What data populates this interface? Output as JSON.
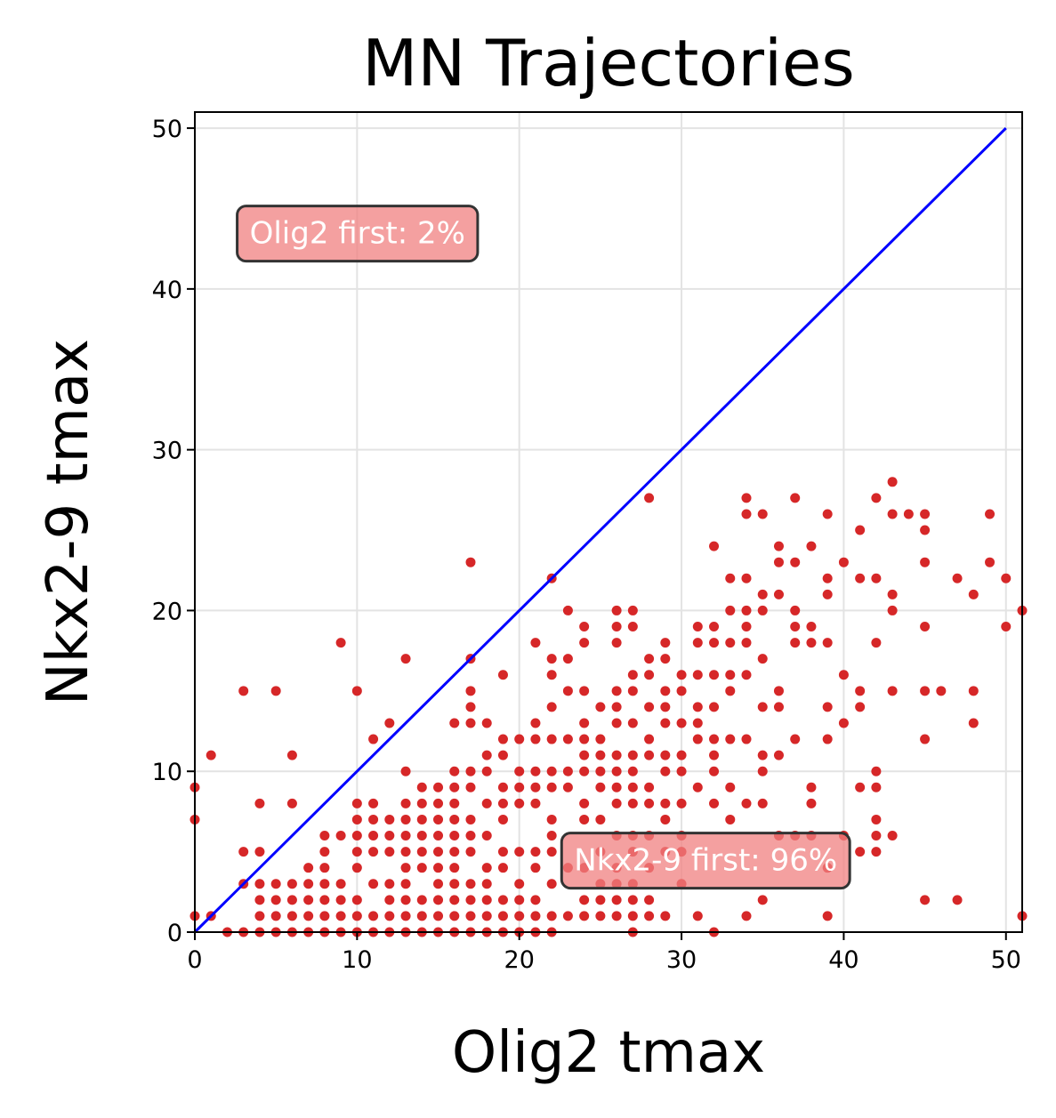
{
  "chart_data": {
    "type": "scatter",
    "title": "MN Trajectories",
    "xlabel": "Olig2 tmax",
    "ylabel": "Nkx2-9 tmax",
    "xlim": [
      0,
      51
    ],
    "ylim": [
      0,
      51
    ],
    "xticks": [
      0,
      10,
      20,
      30,
      40,
      50
    ],
    "yticks": [
      0,
      10,
      20,
      30,
      40,
      50
    ],
    "grid": true,
    "point_color": "#d62728",
    "diagonal": {
      "x": [
        0,
        50
      ],
      "y": [
        0,
        50
      ],
      "color": "#0000ff"
    },
    "annotations": [
      {
        "text": "Olig2 first: 2%",
        "x": 2.5,
        "y": 43.5,
        "color": "#f08080"
      },
      {
        "text": "Nkx2-9 first: 96%",
        "x": 22.5,
        "y": 4.5,
        "color": "#f08080"
      }
    ],
    "points": [
      [
        0,
        9
      ],
      [
        0,
        7
      ],
      [
        0,
        1
      ],
      [
        1,
        1
      ],
      [
        1,
        11
      ],
      [
        2,
        0
      ],
      [
        3,
        15
      ],
      [
        3,
        5
      ],
      [
        3,
        3
      ],
      [
        3,
        0
      ],
      [
        4,
        8
      ],
      [
        4,
        5
      ],
      [
        4,
        3
      ],
      [
        4,
        2
      ],
      [
        4,
        1
      ],
      [
        4,
        0
      ],
      [
        5,
        15
      ],
      [
        5,
        3
      ],
      [
        5,
        2
      ],
      [
        5,
        1
      ],
      [
        5,
        0
      ],
      [
        6,
        11
      ],
      [
        6,
        8
      ],
      [
        6,
        3
      ],
      [
        6,
        2
      ],
      [
        6,
        1
      ],
      [
        6,
        0
      ],
      [
        7,
        4
      ],
      [
        7,
        3
      ],
      [
        7,
        2
      ],
      [
        7,
        1
      ],
      [
        7,
        0
      ],
      [
        8,
        6
      ],
      [
        8,
        5
      ],
      [
        8,
        4
      ],
      [
        8,
        3
      ],
      [
        8,
        2
      ],
      [
        8,
        1
      ],
      [
        8,
        0
      ],
      [
        9,
        18
      ],
      [
        9,
        6
      ],
      [
        9,
        3
      ],
      [
        9,
        2
      ],
      [
        9,
        1
      ],
      [
        9,
        0
      ],
      [
        10,
        15
      ],
      [
        10,
        8
      ],
      [
        10,
        7
      ],
      [
        10,
        6
      ],
      [
        10,
        5
      ],
      [
        10,
        4
      ],
      [
        10,
        2
      ],
      [
        10,
        1
      ],
      [
        10,
        0
      ],
      [
        11,
        12
      ],
      [
        11,
        8
      ],
      [
        11,
        7
      ],
      [
        11,
        6
      ],
      [
        11,
        5
      ],
      [
        11,
        3
      ],
      [
        11,
        1
      ],
      [
        11,
        0
      ],
      [
        12,
        13
      ],
      [
        12,
        7
      ],
      [
        12,
        6
      ],
      [
        12,
        5
      ],
      [
        12,
        3
      ],
      [
        12,
        2
      ],
      [
        12,
        1
      ],
      [
        12,
        0
      ],
      [
        13,
        17
      ],
      [
        13,
        10
      ],
      [
        13,
        8
      ],
      [
        13,
        7
      ],
      [
        13,
        6
      ],
      [
        13,
        5
      ],
      [
        13,
        4
      ],
      [
        13,
        3
      ],
      [
        13,
        2
      ],
      [
        13,
        1
      ],
      [
        13,
        0
      ],
      [
        14,
        9
      ],
      [
        14,
        8
      ],
      [
        14,
        7
      ],
      [
        14,
        6
      ],
      [
        14,
        5
      ],
      [
        14,
        4
      ],
      [
        14,
        2
      ],
      [
        14,
        1
      ],
      [
        14,
        0
      ],
      [
        15,
        9
      ],
      [
        15,
        8
      ],
      [
        15,
        7
      ],
      [
        15,
        6
      ],
      [
        15,
        5
      ],
      [
        15,
        4
      ],
      [
        15,
        3
      ],
      [
        15,
        2
      ],
      [
        15,
        1
      ],
      [
        15,
        0
      ],
      [
        16,
        13
      ],
      [
        16,
        10
      ],
      [
        16,
        9
      ],
      [
        16,
        8
      ],
      [
        16,
        7
      ],
      [
        16,
        6
      ],
      [
        16,
        5
      ],
      [
        16,
        4
      ],
      [
        16,
        3
      ],
      [
        16,
        2
      ],
      [
        16,
        1
      ],
      [
        16,
        0
      ],
      [
        17,
        23
      ],
      [
        17,
        17
      ],
      [
        17,
        15
      ],
      [
        17,
        14
      ],
      [
        17,
        13
      ],
      [
        17,
        10
      ],
      [
        17,
        9
      ],
      [
        17,
        7
      ],
      [
        17,
        6
      ],
      [
        17,
        5
      ],
      [
        17,
        3
      ],
      [
        17,
        2
      ],
      [
        17,
        1
      ],
      [
        17,
        0
      ],
      [
        18,
        13
      ],
      [
        18,
        11
      ],
      [
        18,
        10
      ],
      [
        18,
        8
      ],
      [
        18,
        6
      ],
      [
        18,
        4
      ],
      [
        18,
        3
      ],
      [
        18,
        2
      ],
      [
        18,
        1
      ],
      [
        18,
        0
      ],
      [
        19,
        16
      ],
      [
        19,
        12
      ],
      [
        19,
        11
      ],
      [
        19,
        9
      ],
      [
        19,
        8
      ],
      [
        19,
        7
      ],
      [
        19,
        5
      ],
      [
        19,
        4
      ],
      [
        19,
        2
      ],
      [
        19,
        1
      ],
      [
        19,
        0
      ],
      [
        20,
        12
      ],
      [
        20,
        10
      ],
      [
        20,
        9
      ],
      [
        20,
        8
      ],
      [
        20,
        5
      ],
      [
        20,
        3
      ],
      [
        20,
        2
      ],
      [
        20,
        1
      ],
      [
        20,
        0
      ],
      [
        21,
        18
      ],
      [
        21,
        13
      ],
      [
        21,
        12
      ],
      [
        21,
        10
      ],
      [
        21,
        9
      ],
      [
        21,
        8
      ],
      [
        21,
        5
      ],
      [
        21,
        4
      ],
      [
        21,
        2
      ],
      [
        21,
        1
      ],
      [
        21,
        0
      ],
      [
        22,
        22
      ],
      [
        22,
        17
      ],
      [
        22,
        16
      ],
      [
        22,
        14
      ],
      [
        22,
        12
      ],
      [
        22,
        10
      ],
      [
        22,
        9
      ],
      [
        22,
        7
      ],
      [
        22,
        6
      ],
      [
        22,
        5
      ],
      [
        22,
        3
      ],
      [
        22,
        1
      ],
      [
        22,
        0
      ],
      [
        23,
        20
      ],
      [
        23,
        17
      ],
      [
        23,
        15
      ],
      [
        23,
        12
      ],
      [
        23,
        10
      ],
      [
        23,
        9
      ],
      [
        23,
        4
      ],
      [
        23,
        1
      ],
      [
        24,
        19
      ],
      [
        24,
        18
      ],
      [
        24,
        15
      ],
      [
        24,
        13
      ],
      [
        24,
        12
      ],
      [
        24,
        11
      ],
      [
        24,
        10
      ],
      [
        24,
        8
      ],
      [
        24,
        7
      ],
      [
        24,
        4
      ],
      [
        24,
        2
      ],
      [
        24,
        1
      ],
      [
        25,
        14
      ],
      [
        25,
        12
      ],
      [
        25,
        11
      ],
      [
        25,
        10
      ],
      [
        25,
        9
      ],
      [
        25,
        7
      ],
      [
        25,
        5
      ],
      [
        25,
        3
      ],
      [
        25,
        2
      ],
      [
        25,
        1
      ],
      [
        26,
        20
      ],
      [
        26,
        19
      ],
      [
        26,
        18
      ],
      [
        26,
        15
      ],
      [
        26,
        14
      ],
      [
        26,
        13
      ],
      [
        26,
        11
      ],
      [
        26,
        10
      ],
      [
        26,
        9
      ],
      [
        26,
        8
      ],
      [
        26,
        6
      ],
      [
        26,
        4
      ],
      [
        26,
        3
      ],
      [
        26,
        2
      ],
      [
        26,
        1
      ],
      [
        27,
        20
      ],
      [
        27,
        19
      ],
      [
        27,
        16
      ],
      [
        27,
        15
      ],
      [
        27,
        13
      ],
      [
        27,
        11
      ],
      [
        27,
        10
      ],
      [
        27,
        9
      ],
      [
        27,
        8
      ],
      [
        27,
        6
      ],
      [
        27,
        5
      ],
      [
        27,
        3
      ],
      [
        27,
        2
      ],
      [
        27,
        1
      ],
      [
        27,
        0
      ],
      [
        28,
        27
      ],
      [
        28,
        17
      ],
      [
        28,
        16
      ],
      [
        28,
        14
      ],
      [
        28,
        12
      ],
      [
        28,
        11
      ],
      [
        28,
        9
      ],
      [
        28,
        8
      ],
      [
        28,
        6
      ],
      [
        28,
        4
      ],
      [
        28,
        2
      ],
      [
        28,
        1
      ],
      [
        29,
        18
      ],
      [
        29,
        17
      ],
      [
        29,
        15
      ],
      [
        29,
        14
      ],
      [
        29,
        13
      ],
      [
        29,
        11
      ],
      [
        29,
        10
      ],
      [
        29,
        8
      ],
      [
        29,
        7
      ],
      [
        29,
        5
      ],
      [
        29,
        1
      ],
      [
        30,
        16
      ],
      [
        30,
        15
      ],
      [
        30,
        13
      ],
      [
        30,
        11
      ],
      [
        30,
        10
      ],
      [
        30,
        8
      ],
      [
        30,
        6
      ],
      [
        30,
        5
      ],
      [
        30,
        3
      ],
      [
        31,
        19
      ],
      [
        31,
        18
      ],
      [
        31,
        16
      ],
      [
        31,
        14
      ],
      [
        31,
        13
      ],
      [
        31,
        12
      ],
      [
        31,
        9
      ],
      [
        31,
        1
      ],
      [
        32,
        24
      ],
      [
        32,
        19
      ],
      [
        32,
        18
      ],
      [
        32,
        16
      ],
      [
        32,
        14
      ],
      [
        32,
        12
      ],
      [
        32,
        11
      ],
      [
        32,
        10
      ],
      [
        32,
        8
      ],
      [
        32,
        0
      ],
      [
        33,
        22
      ],
      [
        33,
        20
      ],
      [
        33,
        18
      ],
      [
        33,
        16
      ],
      [
        33,
        15
      ],
      [
        33,
        12
      ],
      [
        33,
        9
      ],
      [
        33,
        7
      ],
      [
        34,
        27
      ],
      [
        34,
        26
      ],
      [
        34,
        22
      ],
      [
        34,
        20
      ],
      [
        34,
        19
      ],
      [
        34,
        18
      ],
      [
        34,
        16
      ],
      [
        34,
        12
      ],
      [
        34,
        8
      ],
      [
        34,
        1
      ],
      [
        35,
        26
      ],
      [
        35,
        21
      ],
      [
        35,
        20
      ],
      [
        35,
        17
      ],
      [
        35,
        14
      ],
      [
        35,
        11
      ],
      [
        35,
        10
      ],
      [
        35,
        8
      ],
      [
        35,
        2
      ],
      [
        36,
        24
      ],
      [
        36,
        23
      ],
      [
        36,
        21
      ],
      [
        36,
        15
      ],
      [
        36,
        14
      ],
      [
        36,
        11
      ],
      [
        36,
        6
      ],
      [
        37,
        27
      ],
      [
        37,
        23
      ],
      [
        37,
        20
      ],
      [
        37,
        19
      ],
      [
        37,
        18
      ],
      [
        37,
        12
      ],
      [
        37,
        6
      ],
      [
        38,
        24
      ],
      [
        38,
        19
      ],
      [
        38,
        18
      ],
      [
        38,
        9
      ],
      [
        38,
        8
      ],
      [
        38,
        6
      ],
      [
        39,
        26
      ],
      [
        39,
        22
      ],
      [
        39,
        21
      ],
      [
        39,
        18
      ],
      [
        39,
        14
      ],
      [
        39,
        12
      ],
      [
        39,
        4
      ],
      [
        39,
        1
      ],
      [
        40,
        23
      ],
      [
        40,
        16
      ],
      [
        40,
        13
      ],
      [
        40,
        6
      ],
      [
        41,
        25
      ],
      [
        41,
        22
      ],
      [
        41,
        15
      ],
      [
        41,
        14
      ],
      [
        41,
        9
      ],
      [
        41,
        5
      ],
      [
        42,
        27
      ],
      [
        42,
        22
      ],
      [
        42,
        18
      ],
      [
        42,
        10
      ],
      [
        42,
        9
      ],
      [
        42,
        7
      ],
      [
        42,
        6
      ],
      [
        42,
        5
      ],
      [
        43,
        28
      ],
      [
        43,
        26
      ],
      [
        43,
        21
      ],
      [
        43,
        20
      ],
      [
        43,
        15
      ],
      [
        43,
        6
      ],
      [
        44,
        26
      ],
      [
        45,
        26
      ],
      [
        45,
        25
      ],
      [
        45,
        23
      ],
      [
        45,
        19
      ],
      [
        45,
        15
      ],
      [
        45,
        12
      ],
      [
        45,
        2
      ],
      [
        46,
        15
      ],
      [
        47,
        22
      ],
      [
        47,
        2
      ],
      [
        48,
        21
      ],
      [
        48,
        15
      ],
      [
        48,
        13
      ],
      [
        49,
        26
      ],
      [
        49,
        23
      ],
      [
        50,
        22
      ],
      [
        50,
        19
      ],
      [
        51,
        20
      ],
      [
        51,
        1
      ]
    ]
  }
}
